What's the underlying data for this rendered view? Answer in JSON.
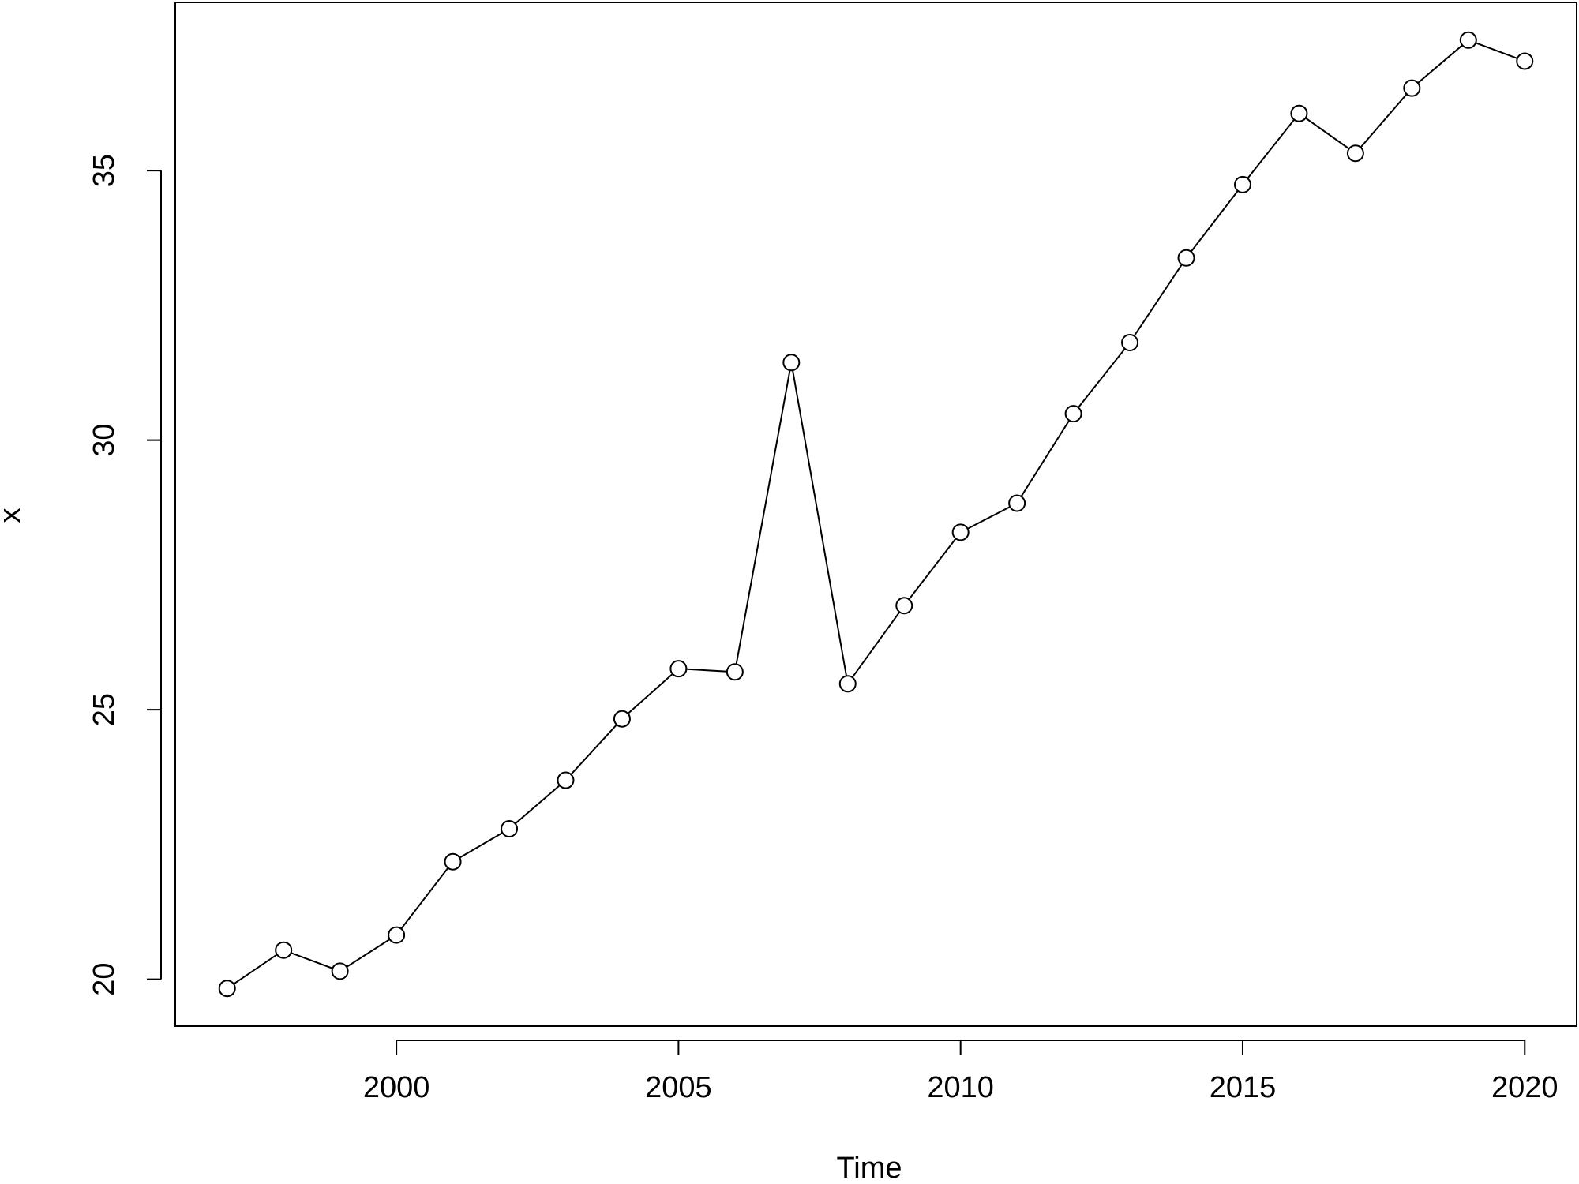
{
  "chart_data": {
    "type": "line",
    "xlabel": "Time",
    "ylabel": "x",
    "x": [
      1997,
      1998,
      1999,
      2000,
      2001,
      2002,
      2003,
      2004,
      2005,
      2006,
      2007,
      2008,
      2009,
      2010,
      2011,
      2012,
      2013,
      2014,
      2015,
      2016,
      2017,
      2018,
      2019,
      2020
    ],
    "values": [
      19.83,
      20.54,
      20.15,
      20.82,
      22.18,
      22.79,
      23.69,
      24.83,
      25.76,
      25.7,
      31.44,
      25.48,
      26.93,
      28.29,
      28.83,
      30.49,
      31.81,
      33.38,
      34.74,
      36.06,
      35.32,
      36.53,
      37.42,
      37.03
    ],
    "color": "#000000",
    "markers": true,
    "xlim": [
      1996.08,
      2020.92
    ],
    "xticks": [
      2000,
      2005,
      2010,
      2015,
      2020
    ],
    "ylim": [
      19.13,
      38.12
    ],
    "yticks": [
      20,
      25,
      30,
      35
    ],
    "grid": false
  }
}
